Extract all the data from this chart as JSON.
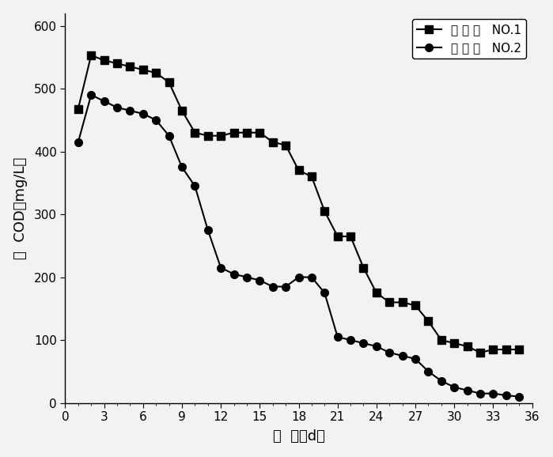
{
  "series1_label": "反 应 器   NO.1",
  "series2_label": "反 应 器   NO.2",
  "series1_x": [
    1,
    2,
    3,
    4,
    5,
    6,
    7,
    8,
    9,
    10,
    11,
    12,
    13,
    14,
    15,
    16,
    17,
    18,
    19,
    20,
    21,
    22,
    23,
    24,
    25,
    26,
    27,
    28,
    29,
    30,
    31,
    32,
    33,
    34,
    35
  ],
  "series1_y": [
    468,
    553,
    545,
    540,
    535,
    530,
    525,
    510,
    465,
    430,
    425,
    425,
    430,
    430,
    430,
    415,
    410,
    370,
    360,
    305,
    265,
    265,
    215,
    175,
    160,
    160,
    155,
    130,
    100,
    95,
    90,
    80,
    85,
    85,
    85
  ],
  "series2_x": [
    1,
    2,
    3,
    4,
    5,
    6,
    7,
    8,
    9,
    10,
    11,
    12,
    13,
    14,
    15,
    16,
    17,
    18,
    19,
    20,
    21,
    22,
    23,
    24,
    25,
    26,
    27,
    28,
    29,
    30,
    31,
    32,
    33,
    34,
    35
  ],
  "series2_y": [
    415,
    490,
    480,
    470,
    465,
    460,
    450,
    425,
    375,
    345,
    275,
    215,
    205,
    200,
    195,
    185,
    185,
    200,
    200,
    175,
    105,
    100,
    95,
    90,
    80,
    75,
    70,
    50,
    35,
    25,
    20,
    15,
    15,
    12,
    10
  ],
  "xlabel": "时  间（d）",
  "ylabel": "滤  COD（mg/L）",
  "xlim": [
    0,
    36
  ],
  "ylim": [
    0,
    620
  ],
  "xticks": [
    0,
    3,
    6,
    9,
    12,
    15,
    18,
    21,
    24,
    27,
    30,
    33,
    36
  ],
  "yticks": [
    0,
    100,
    200,
    300,
    400,
    500,
    600
  ],
  "line_color": "#000000",
  "marker1": "s",
  "marker2": "o",
  "markersize": 7,
  "linewidth": 1.5,
  "legend_loc": "upper right",
  "bg_color": "#f0f0f0"
}
